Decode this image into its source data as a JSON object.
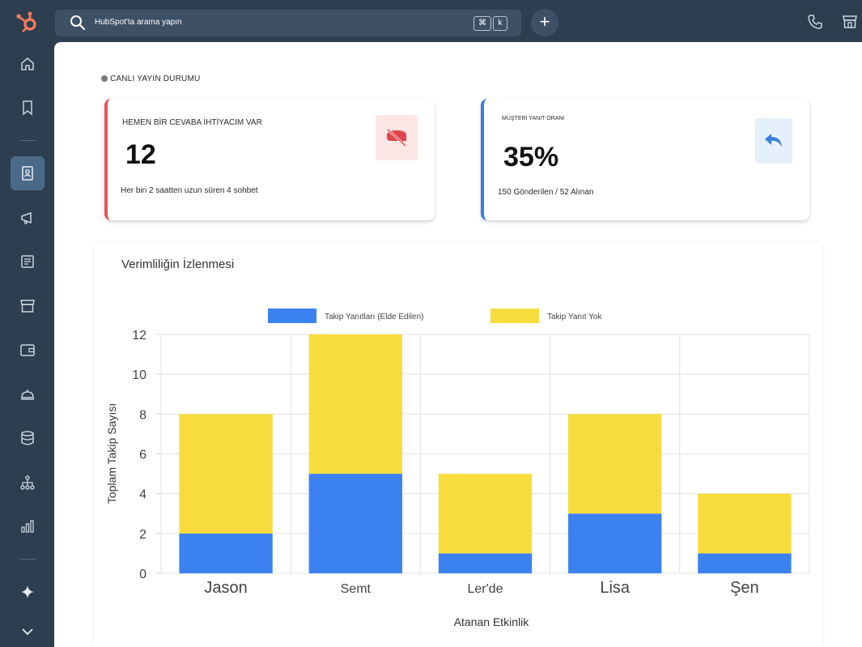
{
  "topbar": {
    "search_placeholder": "HubSpot'ta arama yapın",
    "shortcut_cmd": "⌘",
    "shortcut_key": "k",
    "add_label": "+"
  },
  "sidebar": {
    "items": [
      "home",
      "bookmarks",
      "contacts",
      "marketing",
      "content",
      "commerce",
      "sales",
      "service",
      "data",
      "automation",
      "reporting",
      "ai",
      "expand"
    ],
    "active": "contacts"
  },
  "main": {
    "live_status": "CANLI YAYIN DURUMU",
    "cards": [
      {
        "label": "HEMEN BİR CEVABA İHTİYACIM VAR",
        "value": "12",
        "sub": "Her biri 2 saatten uzun süren 4 sohbet",
        "icon": "no-chat-icon",
        "accent": "#e05858"
      },
      {
        "label": "MÜŞTERİ YANIT ORANI",
        "value": "35%",
        "sub": "150 Gönderilen / 52 Alınan",
        "icon": "reply-icon",
        "accent": "#3b7ee0"
      }
    ],
    "chart_title": "Verimliliğin İzlenmesi"
  },
  "chart_data": {
    "type": "bar",
    "stacked": true,
    "title": "Verimliliğin İzlenmesi",
    "categories": [
      "Jason",
      "Semt",
      "Ler'de",
      "Lisa",
      "Şen"
    ],
    "series": [
      {
        "name": "Takip Yanıtları (Elde Edilen)",
        "values": [
          2,
          5,
          1,
          3,
          1
        ],
        "color": "#3b82f0"
      },
      {
        "name": "Takip Yanıt Yok",
        "values": [
          6,
          7,
          4,
          5,
          3
        ],
        "color": "#f8dc3e"
      }
    ],
    "xlabel": "Atanan Etkinlik",
    "ylabel": "Toplam Takip Sayısı",
    "ylim": [
      0,
      12
    ],
    "yticks": [
      0,
      2,
      4,
      6,
      8,
      10,
      12
    ],
    "grid": true,
    "legend": "top"
  }
}
